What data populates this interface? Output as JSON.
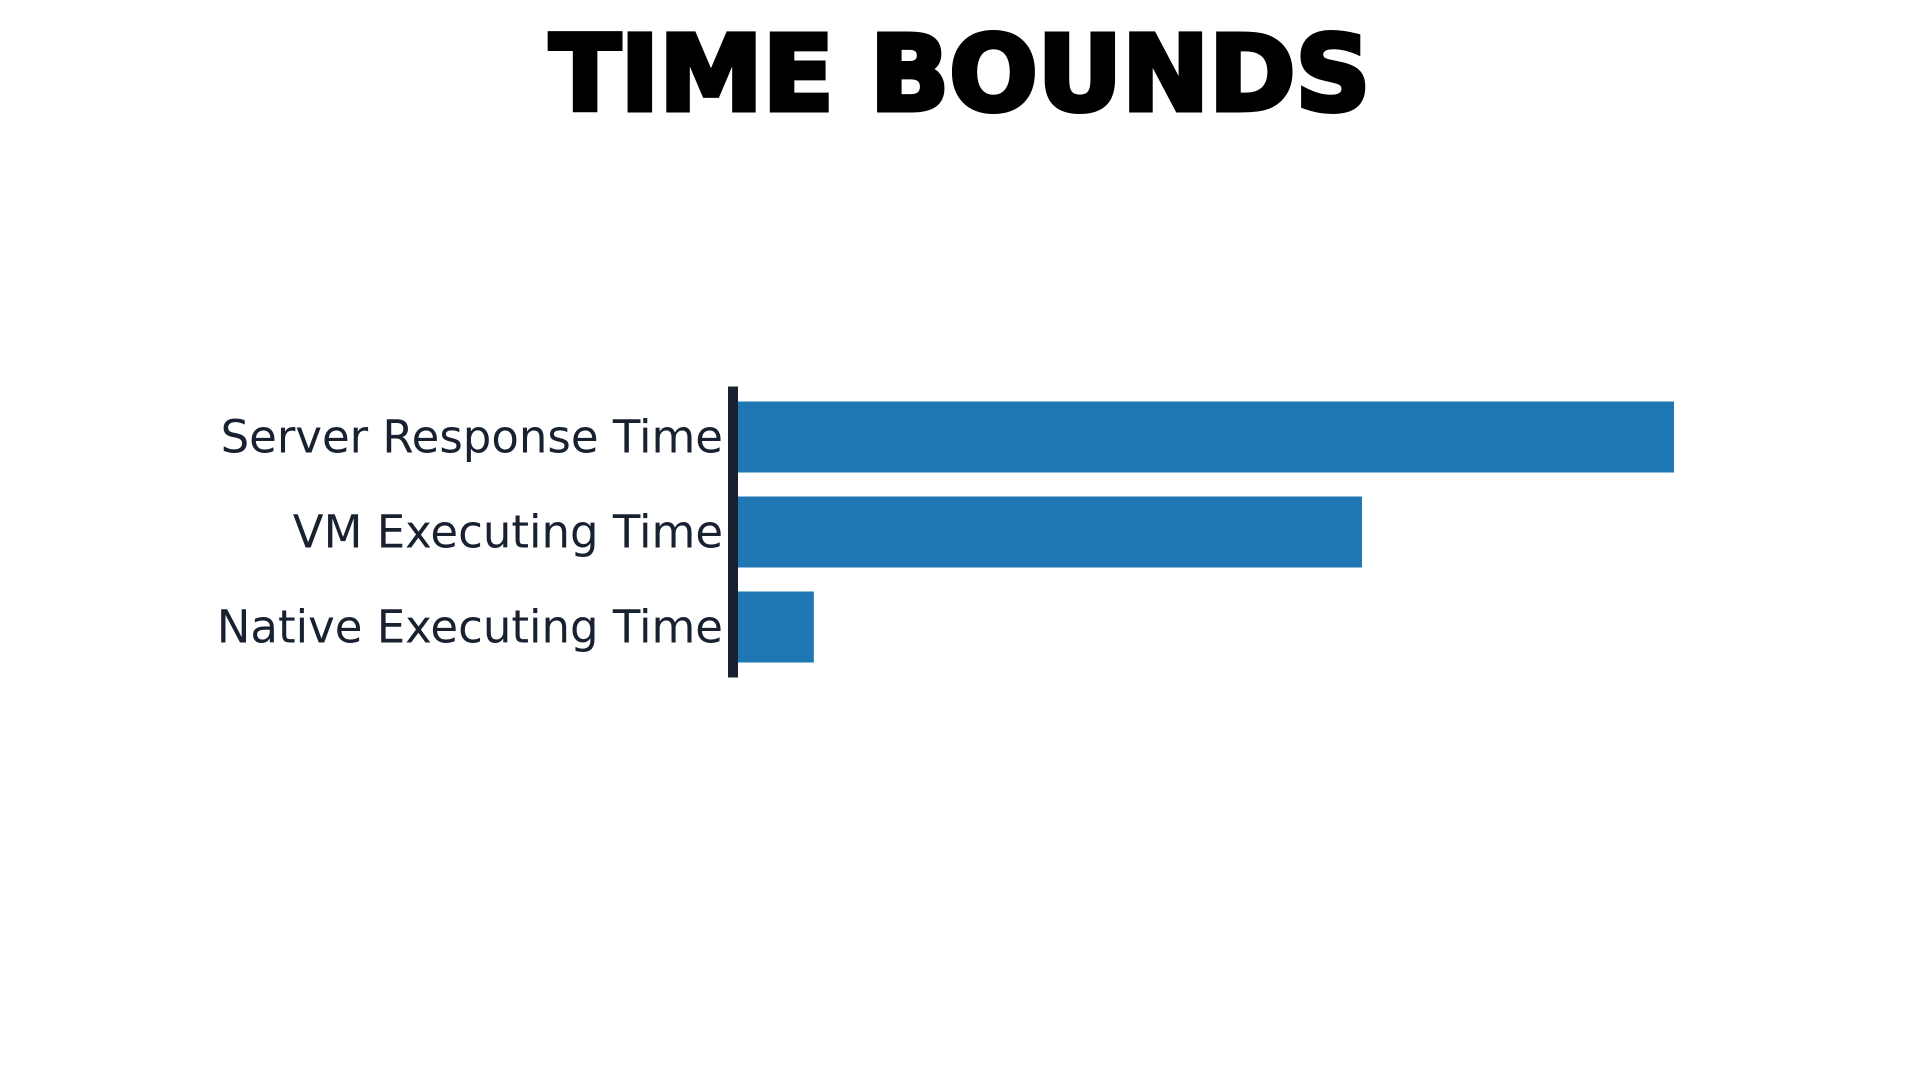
{
  "slide": {
    "title": "TIME BOUNDS"
  },
  "chart_data": {
    "type": "bar",
    "orientation": "horizontal",
    "title": "",
    "xlabel": "",
    "ylabel": "",
    "categories": [
      "Server Response Time",
      "VM Executing Time",
      "Native Executing Time"
    ],
    "values": [
      100,
      66.7,
      8.2
    ],
    "xlim": [
      0,
      100
    ],
    "grid": false,
    "legend": "none",
    "colors": {
      "bar": "#1f77b4",
      "axis": "#172130",
      "label": "#172130"
    }
  }
}
